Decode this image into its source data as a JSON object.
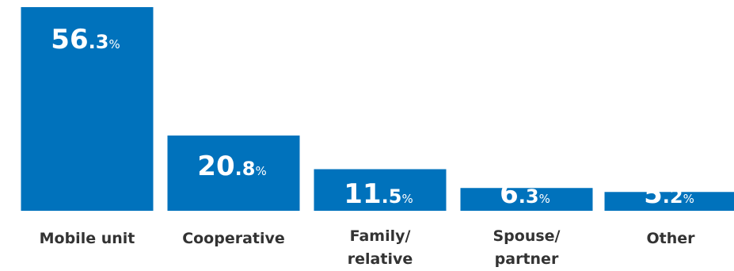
{
  "chart_data": {
    "type": "bar",
    "categories": [
      "Mobile unit",
      "Cooperative",
      "Family/\nrelative",
      "Spouse/\npartner",
      "Other"
    ],
    "values": [
      56.3,
      20.8,
      11.5,
      6.3,
      5.2
    ],
    "value_labels": [
      {
        "int": "56",
        "dec": ".3",
        "unit": "%"
      },
      {
        "int": "20",
        "dec": ".8",
        "unit": "%"
      },
      {
        "int": "11",
        "dec": ".5",
        "unit": "%"
      },
      {
        "int": "6",
        "dec": ".3",
        "unit": "%"
      },
      {
        "int": "5",
        "dec": ".2",
        "unit": "%"
      }
    ],
    "title": "",
    "xlabel": "",
    "ylabel": "",
    "ylim": [
      0,
      56.3
    ],
    "grid": false,
    "legend": "none",
    "colors": {
      "bar": "#0072bc",
      "label_inside": "#ffffff",
      "label_outside": "#333333",
      "category": "#333333"
    }
  }
}
